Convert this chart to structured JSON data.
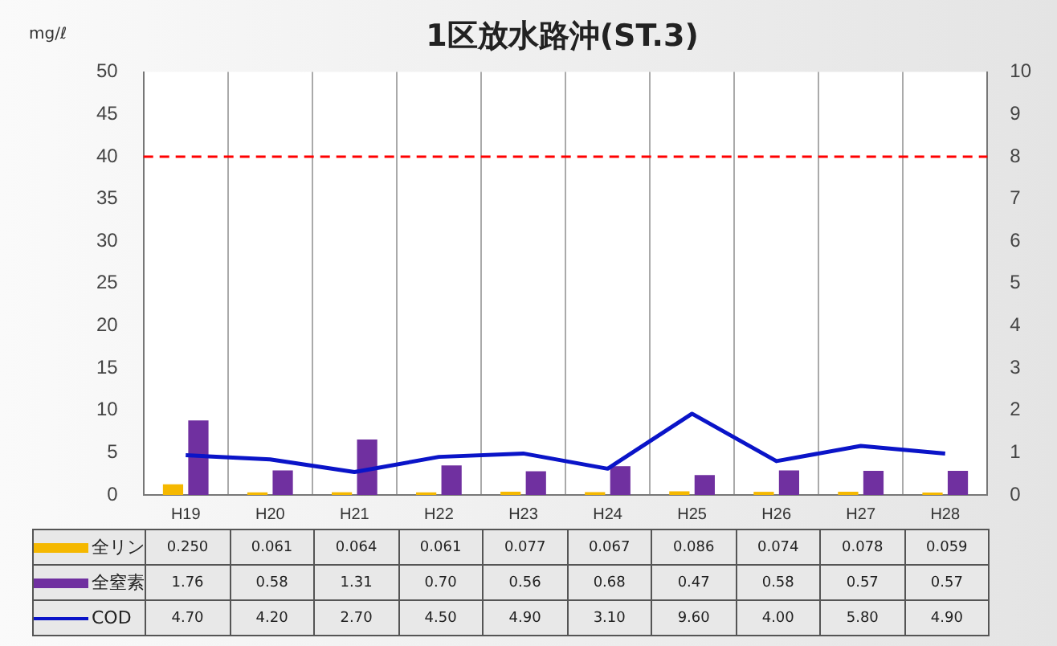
{
  "chart_data": {
    "type": "bar",
    "title": "1区放水路沖(ST.3)",
    "ylabel": "mg/ℓ",
    "categories": [
      "H19",
      "H20",
      "H21",
      "H22",
      "H23",
      "H24",
      "H25",
      "H26",
      "H27",
      "H28"
    ],
    "series": [
      {
        "name": "全リン",
        "axis": "y2",
        "color": "#f5b800",
        "values": [
          0.25,
          0.061,
          0.064,
          0.061,
          0.077,
          0.067,
          0.086,
          0.074,
          0.078,
          0.059
        ],
        "value_labels": [
          "0.250",
          "0.061",
          "0.064",
          "0.061",
          "0.077",
          "0.067",
          "0.086",
          "0.074",
          "0.078",
          "0.059"
        ]
      },
      {
        "name": "全窒素",
        "axis": "y2",
        "color": "#7030a0",
        "values": [
          1.76,
          0.58,
          1.31,
          0.7,
          0.56,
          0.68,
          0.47,
          0.58,
          0.57,
          0.57
        ],
        "value_labels": [
          "1.76",
          "0.58",
          "1.31",
          "0.70",
          "0.56",
          "0.68",
          "0.47",
          "0.58",
          "0.57",
          "0.57"
        ]
      },
      {
        "name": "COD",
        "type": "line",
        "axis": "y",
        "color": "#0a14c8",
        "marker": "none",
        "values": [
          4.7,
          4.2,
          2.7,
          4.5,
          4.9,
          3.1,
          9.6,
          4.0,
          5.8,
          4.9
        ],
        "value_labels": [
          "4.70",
          "4.20",
          "2.70",
          "4.50",
          "4.90",
          "3.10",
          "9.60",
          "4.00",
          "5.80",
          "4.90"
        ]
      }
    ],
    "ylim": [
      0,
      50
    ],
    "yticks": [
      0,
      5,
      10,
      15,
      20,
      25,
      30,
      35,
      40,
      45,
      50
    ],
    "y2lim": [
      0,
      10
    ],
    "y2ticks": [
      0,
      1,
      2,
      3,
      4,
      5,
      6,
      7,
      8,
      9,
      10
    ],
    "ref_lines": [
      {
        "axis": "y",
        "value": 40,
        "color": "#ff0000",
        "line_style": "dashed"
      }
    ],
    "grid": "x",
    "legend": "bottom left"
  }
}
